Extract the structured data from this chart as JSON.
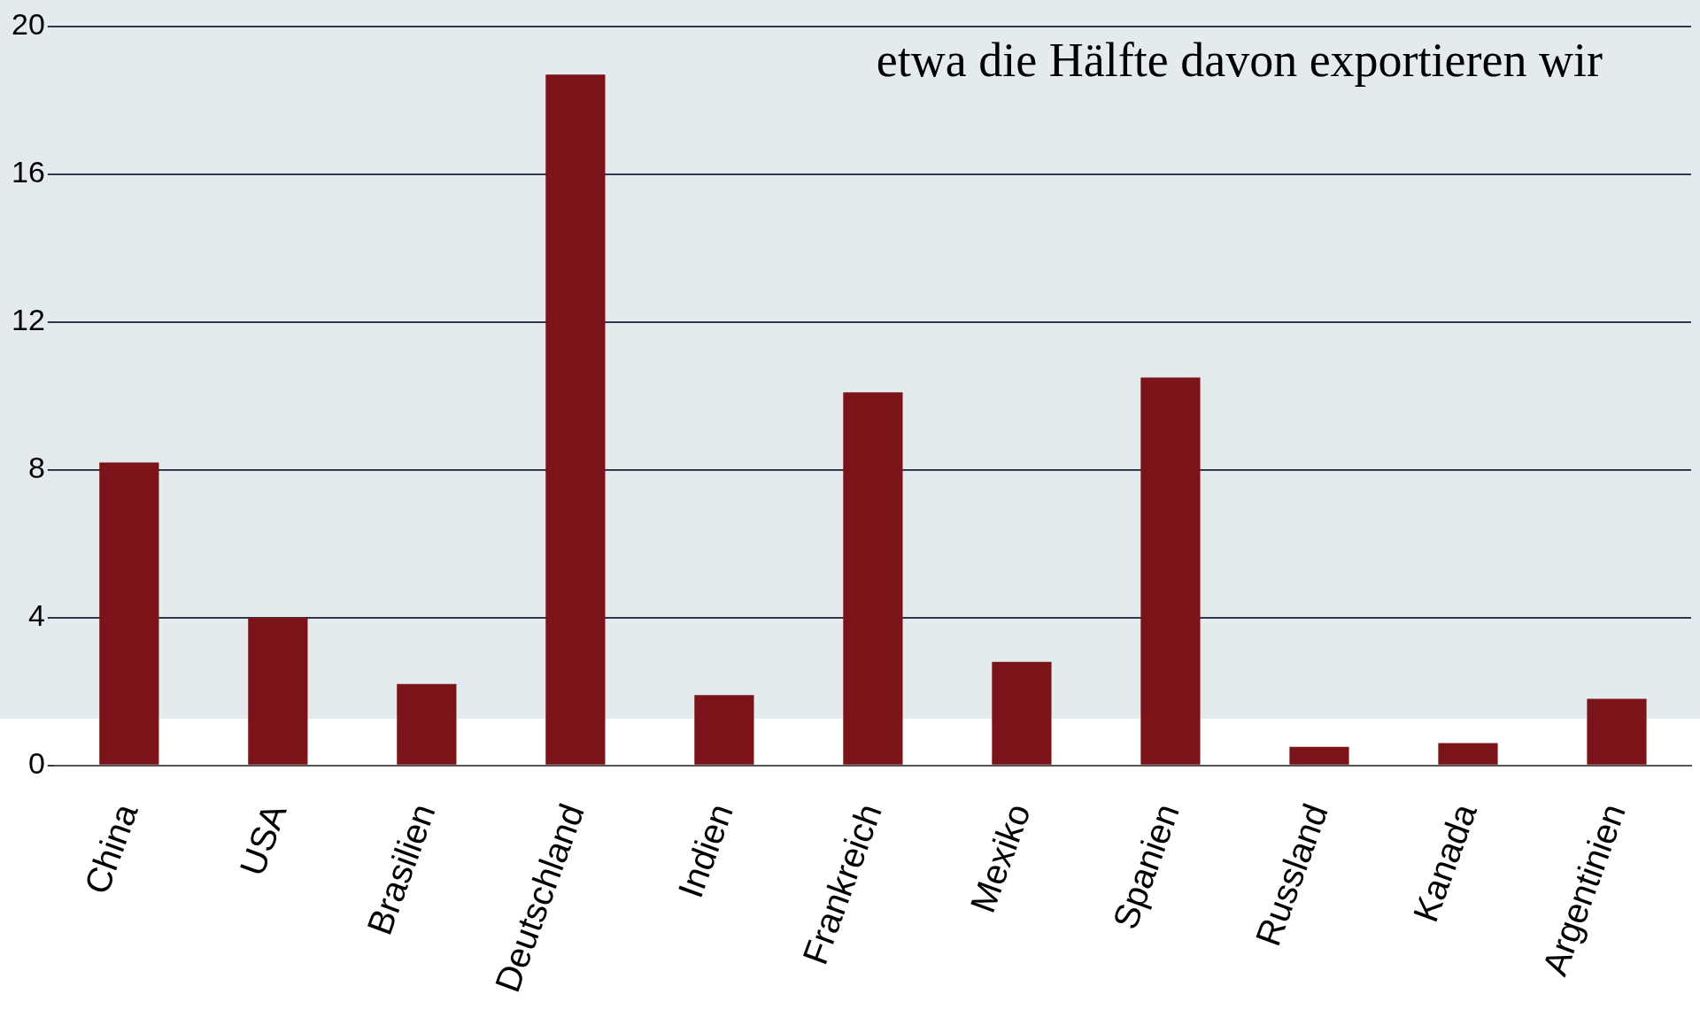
{
  "chart_data": {
    "type": "bar",
    "annotations": [
      "etwa die Hälfte davon exportieren wir"
    ],
    "categories": [
      "China",
      "USA",
      "Brasilien",
      "Deutschland",
      "Indien",
      "Frankreich",
      "Mexiko",
      "Spanien",
      "Russland",
      "Kanada",
      "Argentinien"
    ],
    "values": [
      8.2,
      4.0,
      2.2,
      18.7,
      1.9,
      10.1,
      2.8,
      10.5,
      0.5,
      0.6,
      1.8
    ],
    "color": "#7a1418",
    "ylim": [
      0,
      20
    ],
    "yticks": [
      0,
      4,
      8,
      12,
      16,
      20
    ],
    "grid": "y",
    "legend": false
  }
}
